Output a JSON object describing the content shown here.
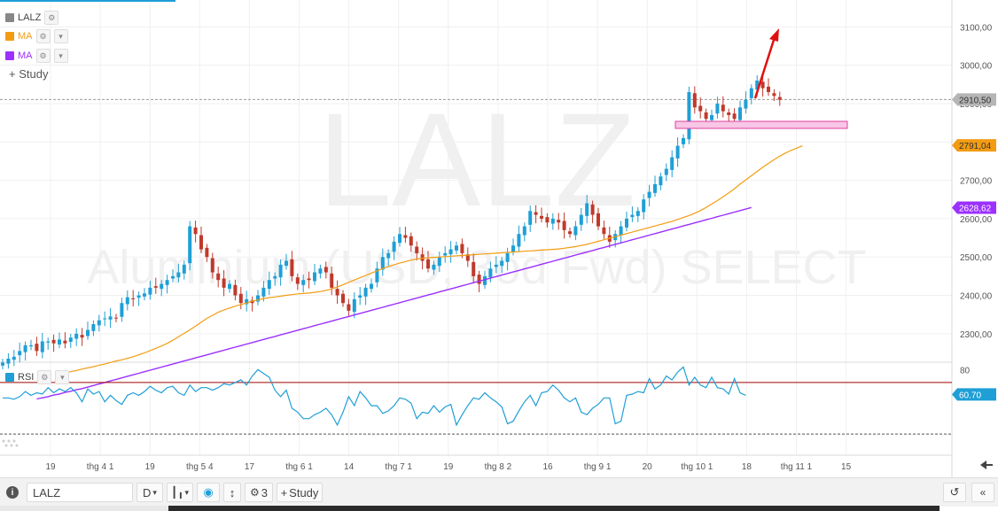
{
  "watermark": {
    "symbol": "LALZ",
    "name": "Aluminium (USD, 3od Fwd) SELECT"
  },
  "legend": {
    "main": {
      "label": "LALZ",
      "color": "#888888"
    },
    "ma1": {
      "label": "MA",
      "color": "#f39c12"
    },
    "ma2": {
      "label": "MA",
      "color": "#9b30ff"
    },
    "study_label": "Study"
  },
  "rsi_legend": {
    "label": "RSI",
    "color": "#1f9fd6"
  },
  "price_axis": {
    "ticks": [
      {
        "label": "3100,00",
        "value": 3100
      },
      {
        "label": "3000,00",
        "value": 3000
      },
      {
        "label": "2900,00",
        "value": 2900
      },
      {
        "label": "2800,00",
        "value": 2800
      },
      {
        "label": "2700,00",
        "value": 2700
      },
      {
        "label": "2600,00",
        "value": 2600
      },
      {
        "label": "2500,00",
        "value": 2500
      },
      {
        "label": "2400,00",
        "value": 2400
      },
      {
        "label": "2300,00",
        "value": 2300
      }
    ],
    "badges": [
      {
        "label": "2910,50",
        "value": 2910.5,
        "color": "#b5b5b5",
        "text_color": "#333333"
      },
      {
        "label": "2791,04",
        "value": 2791.04,
        "color": "#f39c12",
        "text_color": "#333333"
      },
      {
        "label": "2628,62",
        "value": 2628.62,
        "color": "#9b30ff",
        "text_color": "#ffffff"
      }
    ]
  },
  "rsi_axis": {
    "ticks": [
      {
        "label": "80",
        "value": 80
      }
    ],
    "badge": {
      "label": "60.70",
      "value": 60.7,
      "color": "#1f9fd6"
    }
  },
  "time_axis": {
    "labels": [
      "19",
      "thg 4 1",
      "19",
      "thg 5 4",
      "17",
      "thg 6 1",
      "14",
      "thg 7 1",
      "19",
      "thg 8 2",
      "16",
      "thg 9 1",
      "20",
      "thg 10 1",
      "18",
      "thg 11 1",
      "15"
    ]
  },
  "toolbar": {
    "info_icon": "info-icon",
    "symbol_value": "LALZ",
    "period": "D",
    "study_count": "3",
    "study_label": "Study",
    "undo_icon": "undo-icon",
    "collapse_icon": "collapse-icon"
  },
  "chart_data": {
    "type": "candlestick",
    "price_ylim": [
      2235,
      3170
    ],
    "rsi_ylim": [
      15,
      85
    ],
    "rsi_levels": [
      {
        "value": 70,
        "color": "#a00000",
        "style": "solid"
      },
      {
        "value": 30,
        "color": "#555555",
        "style": "dashed"
      }
    ],
    "current_price": 2910.5,
    "close": [
      2225,
      2235,
      2240,
      2255,
      2270,
      2270,
      2255,
      2280,
      2280,
      2275,
      2285,
      2275,
      2290,
      2300,
      2290,
      2310,
      2325,
      2335,
      2340,
      2345,
      2340,
      2380,
      2395,
      2390,
      2400,
      2405,
      2420,
      2420,
      2430,
      2440,
      2450,
      2460,
      2480,
      2580,
      2560,
      2520,
      2500,
      2460,
      2440,
      2420,
      2430,
      2400,
      2380,
      2390,
      2380,
      2400,
      2420,
      2440,
      2450,
      2480,
      2490,
      2450,
      2430,
      2440,
      2440,
      2460,
      2470,
      2460,
      2420,
      2400,
      2380,
      2360,
      2390,
      2400,
      2420,
      2430,
      2470,
      2500,
      2510,
      2540,
      2560,
      2550,
      2530,
      2510,
      2490,
      2470,
      2480,
      2500,
      2510,
      2520,
      2530,
      2510,
      2490,
      2450,
      2430,
      2450,
      2470,
      2480,
      2490,
      2510,
      2530,
      2560,
      2580,
      2620,
      2610,
      2600,
      2590,
      2600,
      2590,
      2570,
      2560,
      2580,
      2610,
      2640,
      2610,
      2580,
      2560,
      2540,
      2560,
      2580,
      2600,
      2610,
      2620,
      2650,
      2670,
      2690,
      2710,
      2730,
      2760,
      2790,
      2810,
      2930,
      2890,
      2880,
      2860,
      2870,
      2900,
      2880,
      2870,
      2860,
      2890,
      2910,
      2940,
      2960,
      2940,
      2930,
      2920,
      2910
    ],
    "ma1": [
      2195,
      2198,
      2201,
      2204,
      2208,
      2211,
      2214,
      2218,
      2221,
      2225,
      2229,
      2232,
      2236,
      2240,
      2245,
      2250,
      2256,
      2262,
      2268,
      2275,
      2283,
      2292,
      2301,
      2310,
      2320,
      2330,
      2340,
      2348,
      2356,
      2362,
      2367,
      2372,
      2376,
      2380,
      2385,
      2388,
      2392,
      2394,
      2396,
      2398,
      2400,
      2402,
      2404,
      2405,
      2406,
      2408,
      2410,
      2413,
      2417,
      2422,
      2428,
      2434,
      2440,
      2446,
      2452,
      2458,
      2464,
      2470,
      2475,
      2480,
      2484,
      2488,
      2492,
      2495,
      2497,
      2498,
      2499,
      2500,
      2501,
      2502,
      2503,
      2504,
      2505,
      2506,
      2507,
      2508,
      2509,
      2510,
      2511,
      2512,
      2513,
      2514,
      2515,
      2516,
      2517,
      2518,
      2519,
      2520,
      2521,
      2523,
      2525,
      2527,
      2530,
      2533,
      2537,
      2541,
      2545,
      2549,
      2553,
      2557,
      2561,
      2565,
      2569,
      2573,
      2577,
      2581,
      2585,
      2589,
      2593,
      2598,
      2603,
      2608,
      2614,
      2621,
      2629,
      2638,
      2647,
      2657,
      2667,
      2678,
      2690,
      2701,
      2712,
      2723,
      2734,
      2744,
      2754,
      2763,
      2771,
      2778,
      2784,
      2790
    ],
    "ma2": [
      2130,
      2133,
      2136,
      2140,
      2143,
      2147,
      2150,
      2154,
      2157,
      2161,
      2165,
      2169,
      2173,
      2177,
      2181,
      2185,
      2189,
      2193,
      2197,
      2201,
      2205,
      2209,
      2213,
      2217,
      2221,
      2225,
      2229,
      2233,
      2237,
      2241,
      2245,
      2249,
      2253,
      2257,
      2261,
      2265,
      2269,
      2273,
      2277,
      2281,
      2285,
      2289,
      2293,
      2297,
      2301,
      2305,
      2309,
      2313,
      2317,
      2321,
      2325,
      2329,
      2333,
      2337,
      2341,
      2345,
      2349,
      2353,
      2357,
      2361,
      2365,
      2369,
      2373,
      2377,
      2381,
      2385,
      2389,
      2393,
      2397,
      2401,
      2405,
      2409,
      2413,
      2417,
      2421,
      2425,
      2429,
      2433,
      2437,
      2441,
      2445,
      2449,
      2453,
      2457,
      2461,
      2465,
      2469,
      2473,
      2477,
      2481,
      2485,
      2489,
      2493,
      2497,
      2501,
      2505,
      2509,
      2513,
      2517,
      2521,
      2525,
      2529,
      2533,
      2537,
      2541,
      2545,
      2549,
      2553,
      2557,
      2561,
      2565,
      2569,
      2573,
      2577,
      2581,
      2585,
      2589,
      2593,
      2597,
      2601,
      2605,
      2609,
      2613,
      2617,
      2621,
      2625,
      2629
    ],
    "rsi": [
      58,
      58,
      57,
      59,
      63,
      60,
      62,
      61,
      66,
      62,
      65,
      63,
      66,
      62,
      55,
      65,
      61,
      63,
      55,
      60,
      56,
      53,
      60,
      62,
      60,
      63,
      67,
      64,
      62,
      66,
      67,
      62,
      60,
      68,
      63,
      66,
      66,
      64,
      66,
      69,
      68,
      70,
      72,
      68,
      75,
      80,
      77,
      74,
      64,
      59,
      64,
      50,
      47,
      42,
      42,
      45,
      47,
      50,
      45,
      37,
      47,
      59,
      52,
      63,
      58,
      52,
      52,
      46,
      48,
      52,
      58,
      57,
      54,
      42,
      47,
      46,
      52,
      47,
      51,
      53,
      37,
      45,
      52,
      58,
      57,
      62,
      58,
      55,
      51,
      38,
      40,
      48,
      55,
      60,
      52,
      62,
      63,
      68,
      64,
      58,
      55,
      58,
      47,
      45,
      50,
      53,
      58,
      58,
      38,
      40,
      60,
      61,
      63,
      62,
      73,
      65,
      68,
      75,
      72,
      78,
      82,
      68,
      74,
      68,
      66,
      74,
      66,
      65,
      61,
      73,
      62,
      60
    ]
  }
}
